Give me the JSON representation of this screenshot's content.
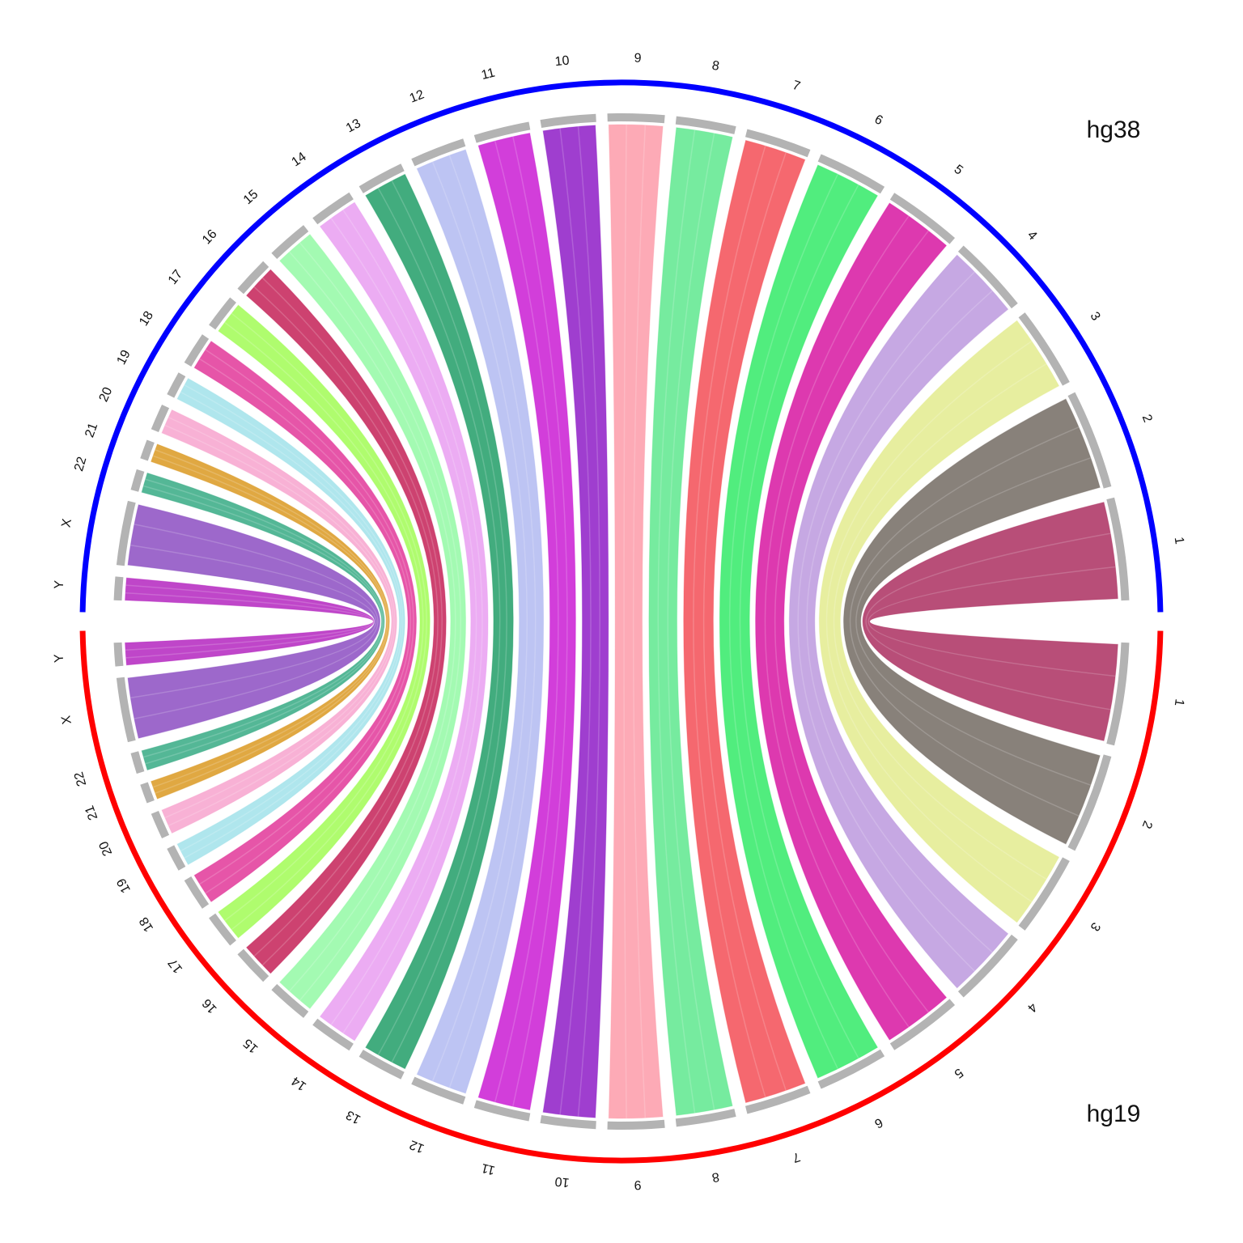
{
  "chart_data": {
    "type": "chord",
    "top_genome": {
      "name": "hg38",
      "color": "#0000ff"
    },
    "bottom_genome": {
      "name": "hg19",
      "color": "#ff0000"
    },
    "chromosomes": [
      {
        "label": "1",
        "size": 249,
        "color": "#a8275a"
      },
      {
        "label": "2",
        "size": 242,
        "color": "#6e655d"
      },
      {
        "label": "3",
        "size": 198,
        "color": "#e2ea8a"
      },
      {
        "label": "4",
        "size": 190,
        "color": "#b995dd"
      },
      {
        "label": "5",
        "size": 181,
        "color": "#d60e9e"
      },
      {
        "label": "6",
        "size": 171,
        "color": "#2be962"
      },
      {
        "label": "7",
        "size": 159,
        "color": "#f3474f"
      },
      {
        "label": "8",
        "size": 145,
        "color": "#58e68a"
      },
      {
        "label": "9",
        "size": 138,
        "color": "#fd97a6"
      },
      {
        "label": "10",
        "size": 134,
        "color": "#8a14c4"
      },
      {
        "label": "11",
        "size": 135,
        "color": "#c814d2"
      },
      {
        "label": "12",
        "size": 133,
        "color": "#afb7f0"
      },
      {
        "label": "13",
        "size": 114,
        "color": "#199a62"
      },
      {
        "label": "14",
        "size": 107,
        "color": "#e89af0"
      },
      {
        "label": "15",
        "size": 102,
        "color": "#8ff9a1"
      },
      {
        "label": "16",
        "size": 90,
        "color": "#c21850"
      },
      {
        "label": "17",
        "size": 83,
        "color": "#9efb4e"
      },
      {
        "label": "18",
        "size": 80,
        "color": "#e02f95"
      },
      {
        "label": "19",
        "size": 59,
        "color": "#9ee0e9"
      },
      {
        "label": "20",
        "size": 64,
        "color": "#f6a0cc"
      },
      {
        "label": "21",
        "size": 47,
        "color": "#d99519"
      },
      {
        "label": "22",
        "size": 51,
        "color": "#2ea77f"
      },
      {
        "label": "X",
        "size": 156,
        "color": "#8747c0"
      },
      {
        "label": "Y",
        "size": 57,
        "color": "#b11dbd"
      }
    ]
  }
}
